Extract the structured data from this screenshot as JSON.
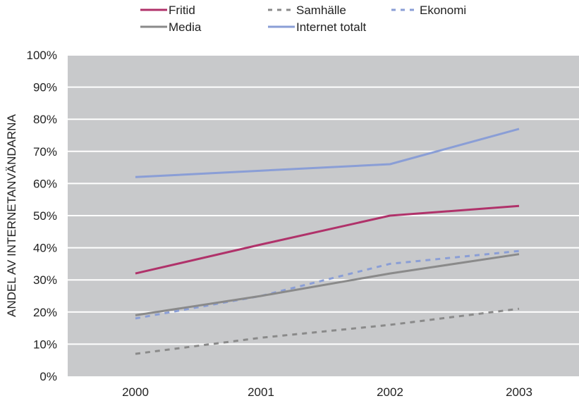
{
  "chart_data": {
    "type": "line",
    "title": "",
    "xlabel": "",
    "ylabel": "ANDEL AV INTERNETANVÄNDARNA",
    "categories": [
      "2000",
      "2001",
      "2002",
      "2003"
    ],
    "yticks": [
      "0%",
      "10%",
      "20%",
      "30%",
      "40%",
      "50%",
      "60%",
      "70%",
      "80%",
      "90%",
      "100%"
    ],
    "ylim": [
      0,
      100
    ],
    "grid": true,
    "legend_position": "top",
    "plot_background": "#c8c9cb",
    "series": [
      {
        "name": "Fritid",
        "values": [
          32,
          41,
          50,
          53
        ],
        "color": "#b0326a",
        "dash": "solid"
      },
      {
        "name": "Samhälle",
        "values": [
          7,
          12,
          16,
          21
        ],
        "color": "#8a8a8a",
        "dash": "dashed"
      },
      {
        "name": "Ekonomi",
        "values": [
          18,
          25,
          35,
          39
        ],
        "color": "#8a9ed6",
        "dash": "dashed"
      },
      {
        "name": "Media",
        "values": [
          19,
          25,
          32,
          38
        ],
        "color": "#8a8a8a",
        "dash": "solid"
      },
      {
        "name": "Internet totalt",
        "values": [
          62,
          64,
          66,
          77
        ],
        "color": "#8a9ed6",
        "dash": "solid"
      }
    ]
  }
}
